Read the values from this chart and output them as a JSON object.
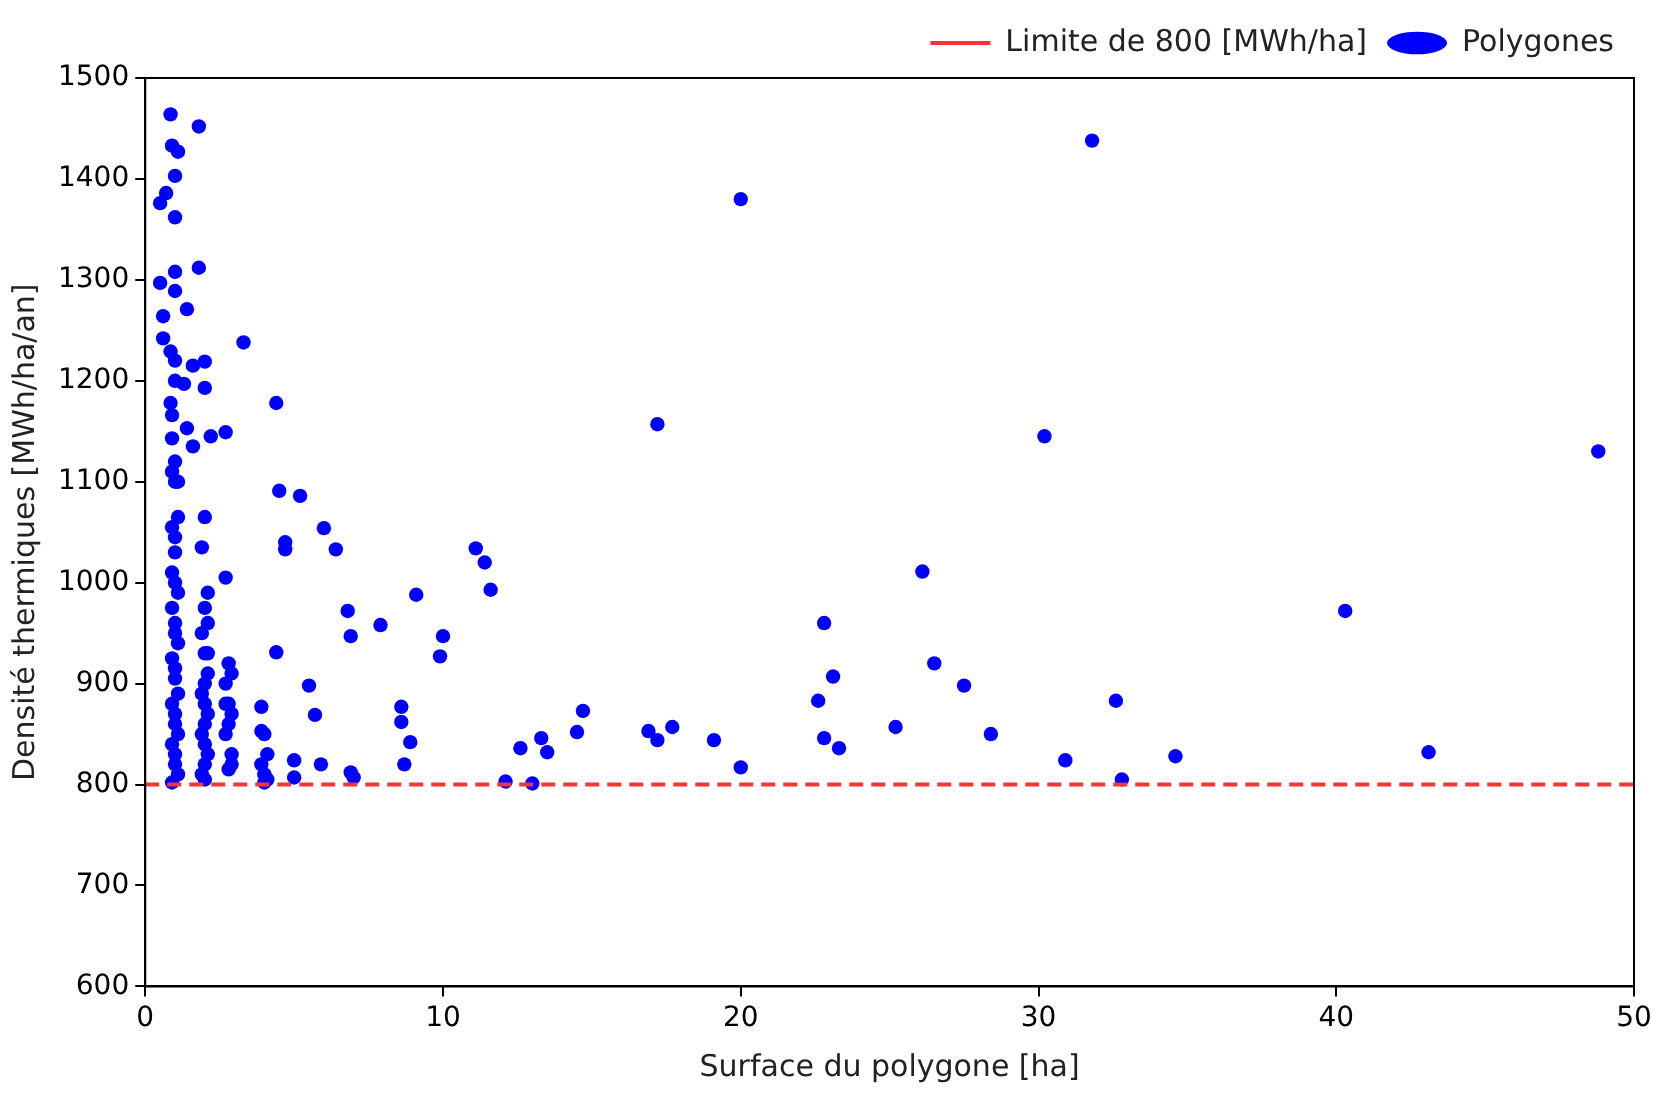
{
  "chart_data": {
    "type": "scatter",
    "xlabel": "Surface du polygone [ha]",
    "ylabel": "Densité thermiques [MWh/ha/an]",
    "xlim": [
      0,
      50
    ],
    "xticks": [
      0,
      10,
      20,
      30,
      40,
      50
    ],
    "ylim": [
      600,
      1500
    ],
    "yticks": [
      600,
      700,
      800,
      900,
      1000,
      1100,
      1200,
      1300,
      1400,
      1500
    ],
    "grid": false,
    "legend": "top right",
    "marker": "circle",
    "ref_lines": [
      {
        "axis": "y",
        "value": 800,
        "label": "Limite de 800 [MWh/ha]",
        "color": "#ff3333",
        "line_style": "dashed"
      }
    ],
    "series": [
      {
        "name": "Polygones",
        "color": "#0000ff",
        "x": [
          20.0,
          17.2,
          30.2,
          48.8,
          26.1,
          40.3,
          22.8,
          26.5,
          27.5,
          23.1,
          22.6,
          32.6,
          28.4,
          25.2,
          22.8,
          23.3,
          19.1,
          20.0,
          30.9,
          32.8,
          34.6,
          43.1,
          31.8,
          13.3,
          13.5,
          14.5,
          14.7,
          16.9,
          17.2,
          17.7,
          4.5,
          5.2,
          6.0,
          6.4,
          4.7,
          4.7,
          2.7,
          6.8,
          6.9,
          7.9,
          9.1,
          10.0,
          9.9,
          11.1,
          11.4,
          11.6,
          4.4,
          5.5,
          5.7,
          3.9,
          3.9,
          5.9,
          5.0,
          5.0,
          6.9,
          7.0,
          8.6,
          8.6,
          8.9,
          8.7,
          2.9,
          12.1,
          13.0,
          12.6,
          0.85,
          1.8,
          0.9,
          1.1,
          1.0,
          0.7,
          0.5,
          1.0,
          1.0,
          1.8,
          0.5,
          1.0,
          1.4,
          0.6,
          0.6,
          3.3,
          0.85,
          1.6,
          2.0,
          1.3,
          2.0,
          4.4,
          0.85,
          0.9,
          1.4,
          2.2,
          2.7,
          0.9,
          1.6,
          1.0,
          0.9,
          1.0,
          1.1,
          0.9,
          1.0,
          1.0,
          0.9,
          1.0,
          1.1,
          0.9,
          1.0,
          1.0,
          1.1,
          0.9,
          1.0,
          1.0,
          1.1,
          0.9,
          1.0,
          1.0,
          1.1,
          0.9,
          1.0,
          1.0,
          1.1,
          0.9,
          1.0,
          1.0,
          1.1,
          2.0,
          1.9,
          2.1,
          2.0,
          2.1,
          1.9,
          2.0,
          2.1,
          2.0,
          1.9,
          2.0,
          2.1,
          2.0,
          1.9,
          2.0,
          2.1,
          2.0,
          1.9,
          2.0,
          2.1,
          2.8,
          2.9,
          2.7,
          2.8,
          2.9,
          2.8,
          2.7,
          2.9,
          2.8,
          2.7,
          4.0,
          4.1,
          3.9,
          4.0,
          4.1,
          4.0
        ],
        "values": [
          1380,
          1157,
          1145,
          1130,
          1011,
          972,
          960,
          920,
          898,
          907,
          883,
          883,
          850,
          857,
          846,
          836,
          844,
          817,
          824,
          805,
          828,
          832,
          1438,
          846,
          832,
          852,
          873,
          853,
          844,
          857,
          1091,
          1086,
          1054,
          1033,
          1040,
          1033,
          1005,
          972,
          947,
          958,
          988,
          947,
          927,
          1034,
          1020,
          993,
          931,
          898,
          869,
          877,
          853,
          820,
          824,
          807,
          812,
          807,
          877,
          862,
          842,
          820,
          820,
          803,
          801,
          836,
          1464,
          1452,
          1433,
          1427,
          1403,
          1386,
          1376,
          1362,
          1308,
          1312,
          1297,
          1289,
          1271,
          1264,
          1242,
          1238,
          1229,
          1215,
          1219,
          1197,
          1193,
          1178,
          1178,
          1166,
          1153,
          1145,
          1149,
          1143,
          1135,
          1120,
          1110,
          1100,
          1065,
          1055,
          1045,
          1030,
          1010,
          1000,
          990,
          975,
          960,
          950,
          940,
          925,
          915,
          905,
          890,
          880,
          870,
          860,
          850,
          840,
          830,
          820,
          810,
          802,
          1220,
          1200,
          1100,
          1065,
          1035,
          990,
          975,
          960,
          950,
          930,
          910,
          900,
          890,
          880,
          870,
          860,
          850,
          840,
          830,
          820,
          810,
          805,
          930,
          920,
          910,
          900,
          880,
          870,
          860,
          850,
          830,
          815,
          880,
          850,
          830,
          820,
          810,
          805,
          802
        ]
      }
    ]
  }
}
